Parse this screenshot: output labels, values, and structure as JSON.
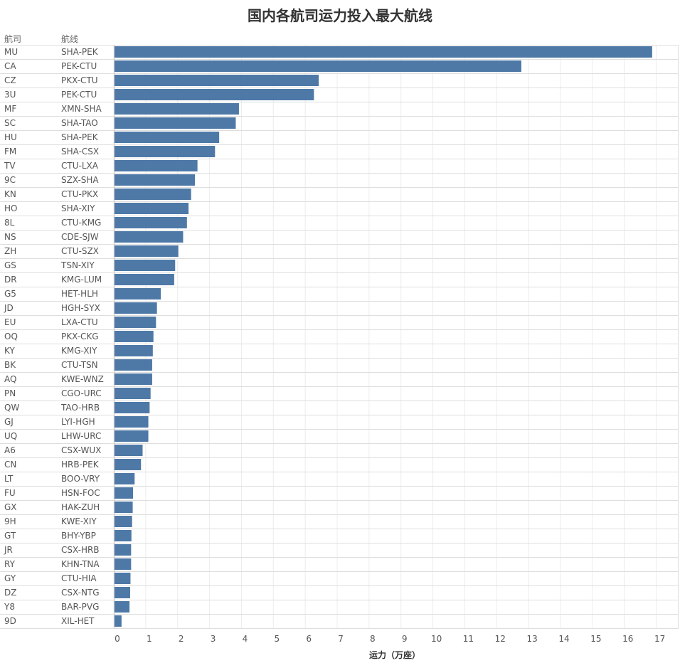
{
  "chart_data": {
    "type": "bar",
    "title": "国内各航司运力投入最大航线",
    "row_headers": [
      "航司",
      "航线"
    ],
    "xlabel": "运力（万座）",
    "xlim": [
      0,
      17.7
    ],
    "xticks": [
      0,
      1,
      2,
      3,
      4,
      5,
      6,
      7,
      8,
      9,
      10,
      11,
      12,
      13,
      14,
      15,
      16,
      17
    ],
    "grid": true,
    "bar_color": "#4e79a7",
    "airlines": [
      "MU",
      "CA",
      "CZ",
      "3U",
      "MF",
      "SC",
      "HU",
      "FM",
      "TV",
      "9C",
      "KN",
      "HO",
      "8L",
      "NS",
      "ZH",
      "GS",
      "DR",
      "G5",
      "JD",
      "EU",
      "OQ",
      "KY",
      "BK",
      "AQ",
      "PN",
      "QW",
      "GJ",
      "UQ",
      "A6",
      "CN",
      "LT",
      "FU",
      "GX",
      "9H",
      "GT",
      "JR",
      "RY",
      "GY",
      "DZ",
      "Y8",
      "9D"
    ],
    "routes": [
      "SHA-PEK",
      "PEK-CTU",
      "PKX-CTU",
      "PEK-CTU",
      "XMN-SHA",
      "SHA-TAO",
      "SHA-PEK",
      "SHA-CSX",
      "CTU-LXA",
      "SZX-SHA",
      "CTU-PKX",
      "SHA-XIY",
      "CTU-KMG",
      "CDE-SJW",
      "CTU-SZX",
      "TSN-XIY",
      "KMG-LUM",
      "HET-HLH",
      "HGH-SYX",
      "LXA-CTU",
      "PKX-CKG",
      "KMG-XIY",
      "CTU-TSN",
      "KWE-WNZ",
      "CGO-URC",
      "TAO-HRB",
      "LYI-HGH",
      "LHW-URC",
      "CSX-WUX",
      "HRB-PEK",
      "BOO-VRY",
      "HSN-FOC",
      "HAK-ZUH",
      "KWE-XIY",
      "BHY-YBP",
      "CSX-HRB",
      "KHN-TNA",
      "CTU-HIA",
      "CSX-NTG",
      "BAR-PVG",
      "XIL-HET"
    ],
    "values": [
      16.85,
      12.75,
      6.4,
      6.25,
      3.9,
      3.8,
      3.28,
      3.15,
      2.6,
      2.52,
      2.4,
      2.32,
      2.27,
      2.15,
      2.0,
      1.9,
      1.87,
      1.45,
      1.33,
      1.3,
      1.22,
      1.2,
      1.18,
      1.18,
      1.13,
      1.1,
      1.06,
      1.06,
      0.88,
      0.83,
      0.63,
      0.58,
      0.57,
      0.55,
      0.53,
      0.52,
      0.52,
      0.5,
      0.49,
      0.47,
      0.22
    ]
  }
}
